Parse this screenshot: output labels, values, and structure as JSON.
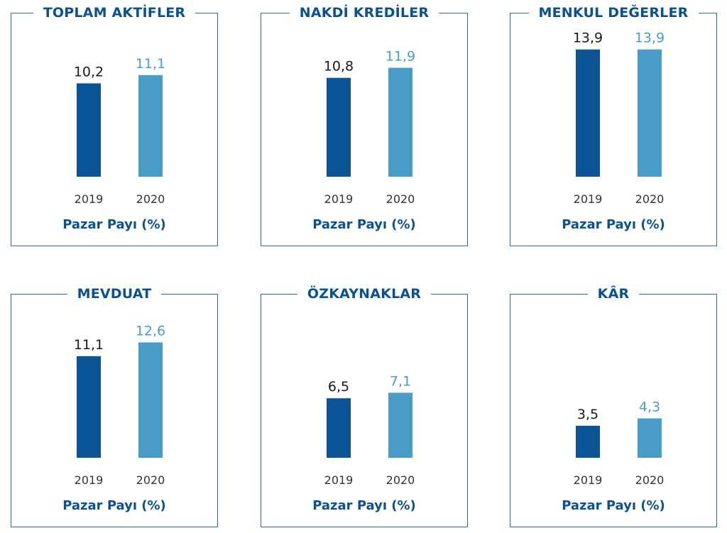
{
  "colors": {
    "y2019": "#0a5496",
    "y2020": "#4a9cc8",
    "frame": "#2e6aa0",
    "title": "#0a5192",
    "tick": "#333333"
  },
  "chart_data": [
    {
      "type": "bar",
      "title": "TOPLAM AKTİFLER",
      "categories": [
        "2019",
        "2020"
      ],
      "values": [
        10.2,
        11.1
      ],
      "value_labels": [
        "10,2",
        "11,1"
      ],
      "xlabel": "Pazar Payı (%)"
    },
    {
      "type": "bar",
      "title": "NAKDİ KREDİLER",
      "categories": [
        "2019",
        "2020"
      ],
      "values": [
        10.8,
        11.9
      ],
      "value_labels": [
        "10,8",
        "11,9"
      ],
      "xlabel": "Pazar Payı (%)"
    },
    {
      "type": "bar",
      "title": "MENKUL DEĞERLER",
      "categories": [
        "2019",
        "2020"
      ],
      "values": [
        13.9,
        13.9
      ],
      "value_labels": [
        "13,9",
        "13,9"
      ],
      "xlabel": "Pazar Payı (%)"
    },
    {
      "type": "bar",
      "title": "MEVDUAT",
      "categories": [
        "2019",
        "2020"
      ],
      "values": [
        11.1,
        12.6
      ],
      "value_labels": [
        "11,1",
        "12,6"
      ],
      "xlabel": "Pazar Payı (%)"
    },
    {
      "type": "bar",
      "title": "ÖZKAYNAKLAR",
      "categories": [
        "2019",
        "2020"
      ],
      "values": [
        6.5,
        7.1
      ],
      "value_labels": [
        "6,5",
        "7,1"
      ],
      "xlabel": "Pazar Payı (%)"
    },
    {
      "type": "bar",
      "title": "KÂR",
      "categories": [
        "2019",
        "2020"
      ],
      "values": [
        3.5,
        4.3
      ],
      "value_labels": [
        "3,5",
        "4,3"
      ],
      "xlabel": "Pazar Payı (%)"
    }
  ]
}
